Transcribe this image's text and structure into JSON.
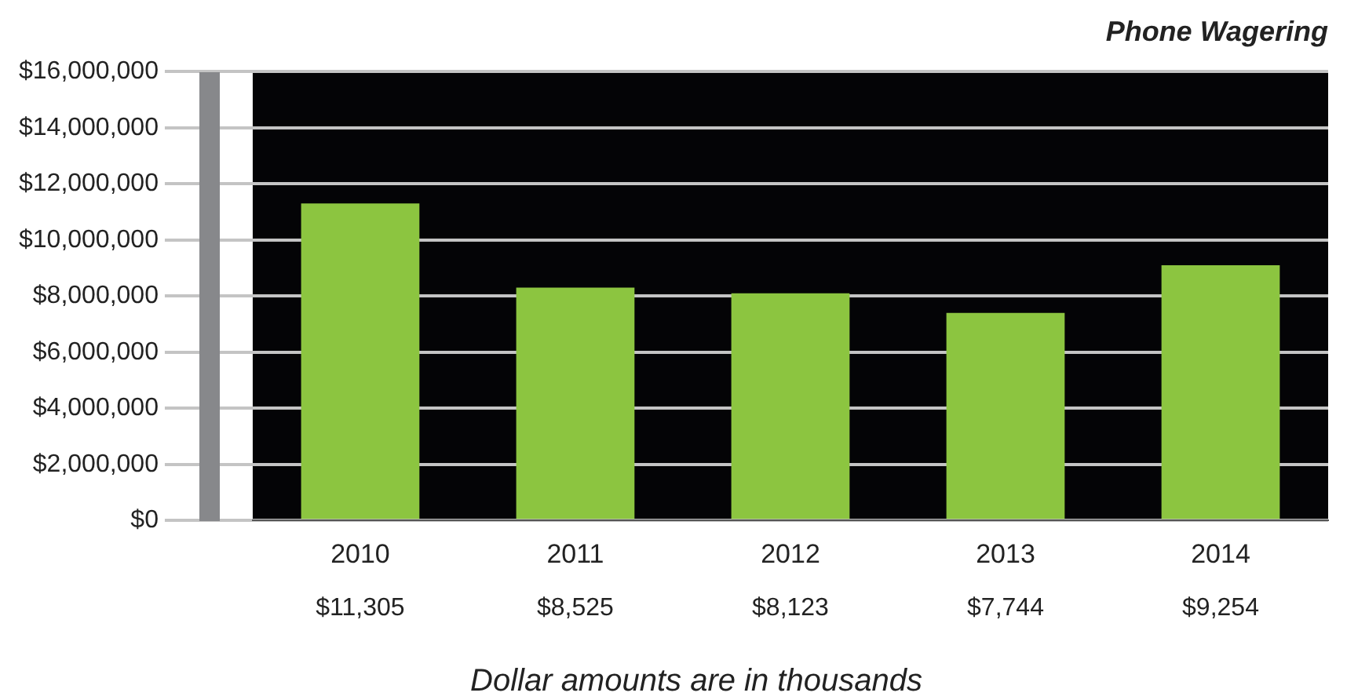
{
  "chart_data": {
    "type": "bar",
    "title": "Phone Wagering",
    "categories": [
      "2010",
      "2011",
      "2012",
      "2013",
      "2014"
    ],
    "values": [
      11300000,
      8300000,
      8100000,
      7400000,
      9100000
    ],
    "color": "#8cc540",
    "ylim": [
      0,
      16000000
    ],
    "yticks": [
      {
        "value": 0,
        "label": "$0"
      },
      {
        "value": 2000000,
        "label": "$2,000,000"
      },
      {
        "value": 4000000,
        "label": "$4,000,000"
      },
      {
        "value": 6000000,
        "label": "$6,000,000"
      },
      {
        "value": 8000000,
        "label": "$8,000,000"
      },
      {
        "value": 10000000,
        "label": "$10,000,000"
      },
      {
        "value": 12000000,
        "label": "$12,000,000"
      },
      {
        "value": 14000000,
        "label": "$14,000,000"
      },
      {
        "value": 16000000,
        "label": "$16,000,000"
      }
    ],
    "grid": "y",
    "annotations": [
      "$11,305",
      "$8,525",
      "$8,123",
      "$7,744",
      "$9,254",
      "Dollar amounts are in thousands"
    ]
  }
}
